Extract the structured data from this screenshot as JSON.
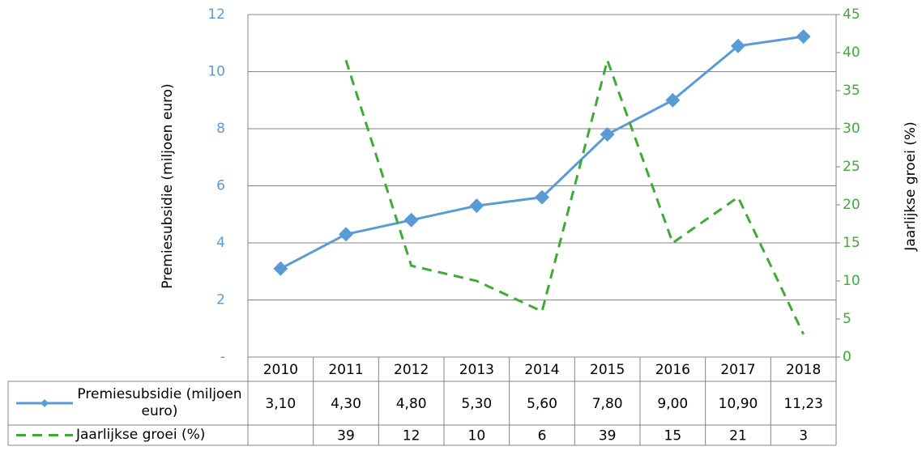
{
  "chart_data": {
    "type": "line",
    "y_label": "Premiesubsidie (miljoen euro)",
    "y2_label": "Jaarlijkse groei (%)",
    "categories": [
      "2010",
      "2011",
      "2012",
      "2013",
      "2014",
      "2015",
      "2016",
      "2017",
      "2018"
    ],
    "series": [
      {
        "name": "Premiesubsidie (miljoen euro)",
        "color": "#5b9bd5",
        "values": [
          3.1,
          4.3,
          4.8,
          5.3,
          5.6,
          7.8,
          9.0,
          10.9,
          11.23
        ],
        "value_labels": [
          "3,10",
          "4,30",
          "4,80",
          "5,30",
          "5,60",
          "7,80",
          "9,00",
          "10,90",
          "11,23"
        ]
      },
      {
        "name": "Jaarlijkse groei (%)",
        "color": "#3dab35",
        "axis": "y2",
        "dashed": true,
        "values": [
          null,
          39,
          12,
          10,
          6,
          39,
          15,
          21,
          3
        ]
      }
    ],
    "ylim": [
      0,
      12
    ],
    "yticks": [
      {
        "value": 0,
        "label": "-"
      },
      2,
      4,
      6,
      8,
      10,
      12
    ],
    "y_tick_color": "#5b9bd5",
    "y2lim": [
      0,
      45
    ],
    "y2ticks": [
      0,
      5,
      10,
      15,
      20,
      25,
      30,
      35,
      40,
      45
    ],
    "y2_tick_color": "#3dab35",
    "grid": true,
    "data_table": true
  }
}
